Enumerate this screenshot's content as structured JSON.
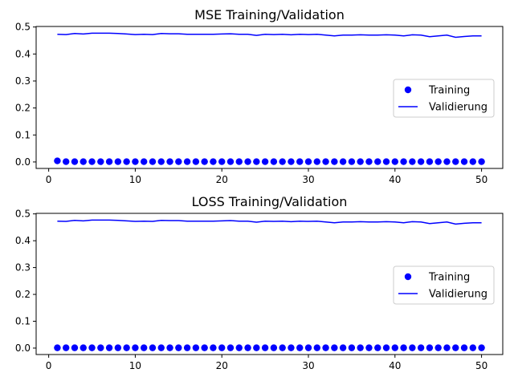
{
  "chart_data": [
    {
      "type": "line",
      "title": "MSE Training/Validation",
      "xlabel": "",
      "ylabel": "",
      "xlim": [
        -1.45,
        52.45
      ],
      "ylim": [
        -0.024,
        0.502
      ],
      "xticks": [
        0,
        10,
        20,
        30,
        40,
        50
      ],
      "yticks": [
        0.0,
        0.1,
        0.2,
        0.3,
        0.4,
        0.5
      ],
      "grid": false,
      "legend_position": "center-right",
      "series": [
        {
          "name": "Training",
          "kind": "scatter",
          "color": "#0000ff",
          "x": [
            1,
            2,
            3,
            4,
            5,
            6,
            7,
            8,
            9,
            10,
            11,
            12,
            13,
            14,
            15,
            16,
            17,
            18,
            19,
            20,
            21,
            22,
            23,
            24,
            25,
            26,
            27,
            28,
            29,
            30,
            31,
            32,
            33,
            34,
            35,
            36,
            37,
            38,
            39,
            40,
            41,
            42,
            43,
            44,
            45,
            46,
            47,
            48,
            49,
            50
          ],
          "values": [
            0.004,
            0.001,
            0.001,
            0.001,
            0.001,
            0.001,
            0.001,
            0.001,
            0.001,
            0.001,
            0.001,
            0.001,
            0.001,
            0.001,
            0.001,
            0.001,
            0.001,
            0.001,
            0.001,
            0.001,
            0.001,
            0.001,
            0.001,
            0.001,
            0.001,
            0.001,
            0.001,
            0.001,
            0.001,
            0.001,
            0.001,
            0.001,
            0.001,
            0.001,
            0.001,
            0.001,
            0.001,
            0.001,
            0.001,
            0.001,
            0.001,
            0.001,
            0.001,
            0.001,
            0.001,
            0.001,
            0.001,
            0.001,
            0.001,
            0.001
          ]
        },
        {
          "name": "Validierung",
          "kind": "line",
          "color": "#0000ff",
          "x": [
            1,
            2,
            3,
            4,
            5,
            6,
            7,
            8,
            9,
            10,
            11,
            12,
            13,
            14,
            15,
            16,
            17,
            18,
            19,
            20,
            21,
            22,
            23,
            24,
            25,
            26,
            27,
            28,
            29,
            30,
            31,
            32,
            33,
            34,
            35,
            36,
            37,
            38,
            39,
            40,
            41,
            42,
            43,
            44,
            45,
            46,
            47,
            48,
            49,
            50
          ],
          "values": [
            0.473,
            0.472,
            0.476,
            0.474,
            0.477,
            0.477,
            0.477,
            0.476,
            0.474,
            0.472,
            0.473,
            0.472,
            0.476,
            0.475,
            0.475,
            0.473,
            0.473,
            0.473,
            0.473,
            0.474,
            0.475,
            0.473,
            0.473,
            0.469,
            0.473,
            0.472,
            0.473,
            0.471,
            0.473,
            0.472,
            0.473,
            0.47,
            0.467,
            0.47,
            0.47,
            0.471,
            0.47,
            0.47,
            0.471,
            0.47,
            0.467,
            0.471,
            0.47,
            0.464,
            0.467,
            0.47,
            0.462,
            0.465,
            0.467,
            0.467
          ]
        }
      ]
    },
    {
      "type": "line",
      "title": "LOSS Training/Validation",
      "xlabel": "",
      "ylabel": "",
      "xlim": [
        -1.45,
        52.45
      ],
      "ylim": [
        -0.024,
        0.502
      ],
      "xticks": [
        0,
        10,
        20,
        30,
        40,
        50
      ],
      "yticks": [
        0.0,
        0.1,
        0.2,
        0.3,
        0.4,
        0.5
      ],
      "grid": false,
      "legend_position": "center-right",
      "series": [
        {
          "name": "Training",
          "kind": "scatter",
          "color": "#0000ff",
          "x": [
            1,
            2,
            3,
            4,
            5,
            6,
            7,
            8,
            9,
            10,
            11,
            12,
            13,
            14,
            15,
            16,
            17,
            18,
            19,
            20,
            21,
            22,
            23,
            24,
            25,
            26,
            27,
            28,
            29,
            30,
            31,
            32,
            33,
            34,
            35,
            36,
            37,
            38,
            39,
            40,
            41,
            42,
            43,
            44,
            45,
            46,
            47,
            48,
            49,
            50
          ],
          "values": [
            0.001,
            0.001,
            0.001,
            0.001,
            0.001,
            0.001,
            0.001,
            0.001,
            0.001,
            0.001,
            0.001,
            0.001,
            0.001,
            0.001,
            0.001,
            0.001,
            0.001,
            0.001,
            0.001,
            0.001,
            0.001,
            0.001,
            0.001,
            0.001,
            0.001,
            0.001,
            0.001,
            0.001,
            0.001,
            0.001,
            0.001,
            0.001,
            0.001,
            0.001,
            0.001,
            0.001,
            0.001,
            0.001,
            0.001,
            0.001,
            0.001,
            0.001,
            0.001,
            0.001,
            0.001,
            0.001,
            0.001,
            0.001,
            0.001,
            0.001
          ]
        },
        {
          "name": "Validierung",
          "kind": "line",
          "color": "#0000ff",
          "x": [
            1,
            2,
            3,
            4,
            5,
            6,
            7,
            8,
            9,
            10,
            11,
            12,
            13,
            14,
            15,
            16,
            17,
            18,
            19,
            20,
            21,
            22,
            23,
            24,
            25,
            26,
            27,
            28,
            29,
            30,
            31,
            32,
            33,
            34,
            35,
            36,
            37,
            38,
            39,
            40,
            41,
            42,
            43,
            44,
            45,
            46,
            47,
            48,
            49,
            50
          ],
          "values": [
            0.473,
            0.472,
            0.476,
            0.474,
            0.477,
            0.477,
            0.477,
            0.476,
            0.474,
            0.472,
            0.473,
            0.472,
            0.476,
            0.475,
            0.475,
            0.473,
            0.473,
            0.473,
            0.473,
            0.474,
            0.475,
            0.473,
            0.473,
            0.469,
            0.473,
            0.472,
            0.473,
            0.471,
            0.473,
            0.472,
            0.473,
            0.47,
            0.467,
            0.47,
            0.47,
            0.471,
            0.47,
            0.47,
            0.471,
            0.47,
            0.467,
            0.471,
            0.47,
            0.464,
            0.467,
            0.47,
            0.462,
            0.465,
            0.467,
            0.467
          ]
        }
      ]
    }
  ]
}
